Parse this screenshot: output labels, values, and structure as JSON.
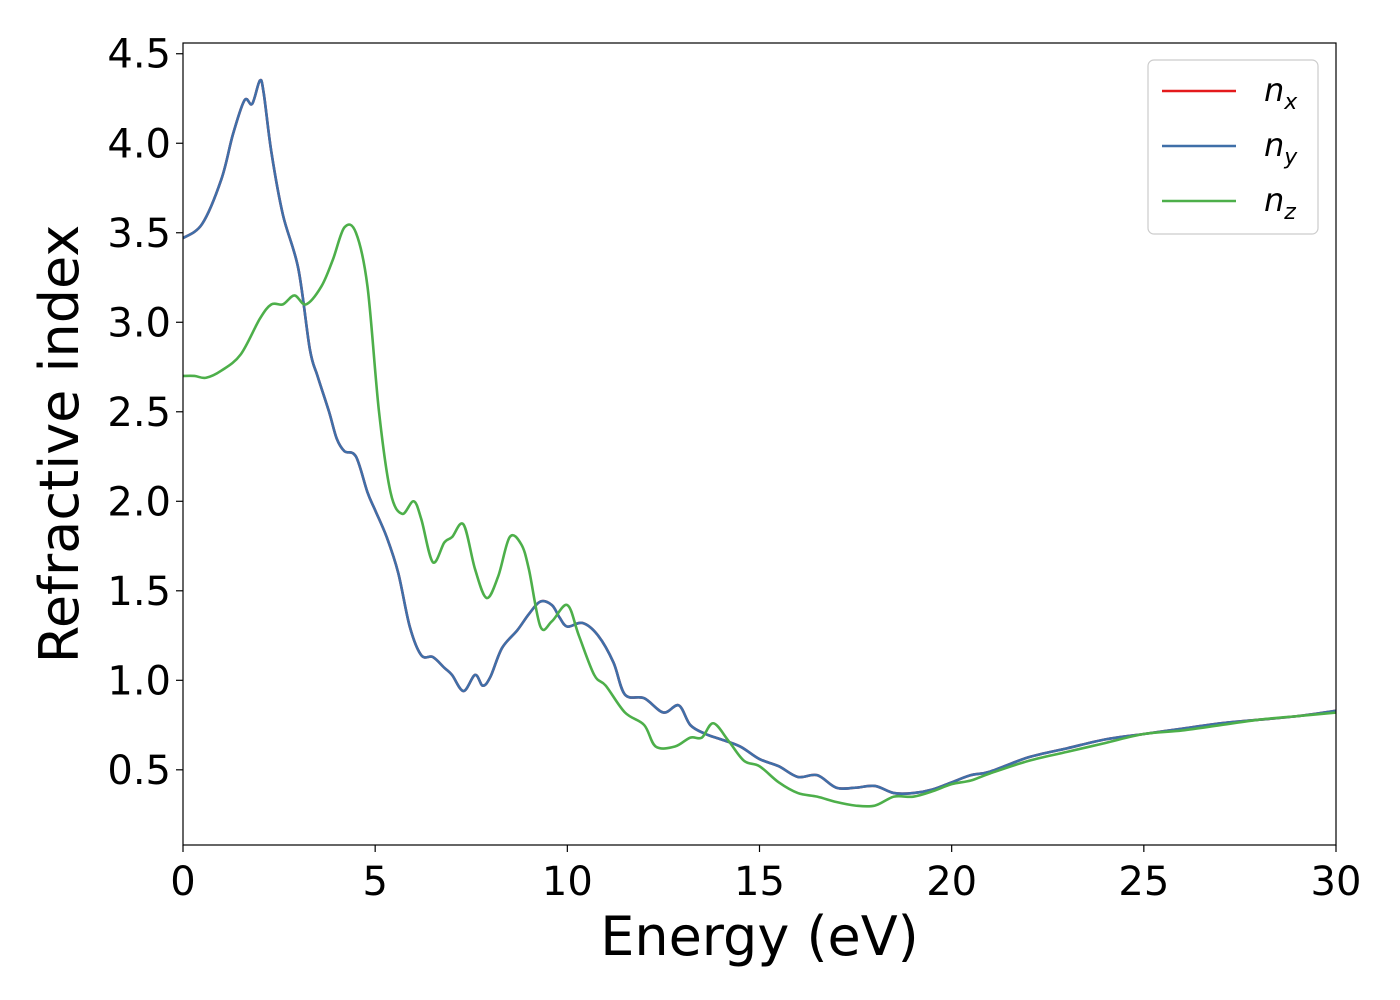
{
  "chart_data": {
    "type": "line",
    "xlabel": "Energy (eV)",
    "ylabel": "Refractive index",
    "xlim": [
      0,
      30
    ],
    "ylim": [
      0.08,
      4.56
    ],
    "xticks": [
      0,
      5,
      10,
      15,
      20,
      25,
      30
    ],
    "xtick_labels": [
      "0",
      "5",
      "10",
      "15",
      "20",
      "25",
      "30"
    ],
    "yticks": [
      0.5,
      1.0,
      1.5,
      2.0,
      2.5,
      3.0,
      3.5,
      4.0,
      4.5
    ],
    "ytick_labels": [
      "0.5",
      "1.0",
      "1.5",
      "2.0",
      "2.5",
      "3.0",
      "3.5",
      "4.0",
      "4.5"
    ],
    "grid": false,
    "legend_position": "top-right",
    "series": [
      {
        "name": "n_x",
        "base": "n",
        "sub": "x",
        "color": "#e41a1c",
        "x": [
          0,
          0.5,
          1.0,
          1.3,
          1.6,
          1.8,
          2.0,
          2.1,
          2.3,
          2.6,
          3.0,
          3.3,
          3.5,
          3.8,
          4.0,
          4.2,
          4.5,
          4.8,
          5.0,
          5.3,
          5.6,
          5.9,
          6.2,
          6.5,
          6.8,
          7.0,
          7.3,
          7.6,
          7.8,
          8.0,
          8.3,
          8.7,
          9.0,
          9.3,
          9.6,
          9.8,
          10.0,
          10.4,
          10.8,
          11.2,
          11.5,
          12.0,
          12.5,
          12.9,
          13.2,
          13.6,
          14.0,
          14.5,
          15.0,
          15.5,
          16.0,
          16.5,
          17.0,
          17.5,
          18.0,
          18.5,
          19.0,
          19.5,
          20.0,
          20.5,
          21.0,
          22.0,
          23.0,
          24.0,
          25.0,
          26.0,
          27.0,
          28.0,
          29.0,
          30.0
        ],
        "y": [
          3.47,
          3.55,
          3.8,
          4.05,
          4.24,
          4.22,
          4.35,
          4.28,
          3.95,
          3.6,
          3.3,
          2.85,
          2.7,
          2.5,
          2.35,
          2.28,
          2.25,
          2.05,
          1.95,
          1.8,
          1.6,
          1.3,
          1.14,
          1.13,
          1.07,
          1.03,
          0.94,
          1.03,
          0.97,
          1.02,
          1.18,
          1.28,
          1.37,
          1.44,
          1.42,
          1.35,
          1.3,
          1.32,
          1.25,
          1.1,
          0.92,
          0.9,
          0.82,
          0.86,
          0.75,
          0.7,
          0.67,
          0.63,
          0.56,
          0.52,
          0.46,
          0.47,
          0.4,
          0.4,
          0.41,
          0.37,
          0.37,
          0.39,
          0.43,
          0.47,
          0.49,
          0.57,
          0.62,
          0.67,
          0.7,
          0.73,
          0.76,
          0.78,
          0.8,
          0.83
        ]
      },
      {
        "name": "n_y",
        "base": "n",
        "sub": "y",
        "color": "#3f6fa8",
        "x": [
          0,
          0.5,
          1.0,
          1.3,
          1.6,
          1.8,
          2.0,
          2.1,
          2.3,
          2.6,
          3.0,
          3.3,
          3.5,
          3.8,
          4.0,
          4.2,
          4.5,
          4.8,
          5.0,
          5.3,
          5.6,
          5.9,
          6.2,
          6.5,
          6.8,
          7.0,
          7.3,
          7.6,
          7.8,
          8.0,
          8.3,
          8.7,
          9.0,
          9.3,
          9.6,
          9.8,
          10.0,
          10.4,
          10.8,
          11.2,
          11.5,
          12.0,
          12.5,
          12.9,
          13.2,
          13.6,
          14.0,
          14.5,
          15.0,
          15.5,
          16.0,
          16.5,
          17.0,
          17.5,
          18.0,
          18.5,
          19.0,
          19.5,
          20.0,
          20.5,
          21.0,
          22.0,
          23.0,
          24.0,
          25.0,
          26.0,
          27.0,
          28.0,
          29.0,
          30.0
        ],
        "y": [
          3.47,
          3.55,
          3.8,
          4.05,
          4.24,
          4.22,
          4.35,
          4.28,
          3.95,
          3.6,
          3.3,
          2.85,
          2.7,
          2.5,
          2.35,
          2.28,
          2.25,
          2.05,
          1.95,
          1.8,
          1.6,
          1.3,
          1.14,
          1.13,
          1.07,
          1.03,
          0.94,
          1.03,
          0.97,
          1.02,
          1.18,
          1.28,
          1.37,
          1.44,
          1.42,
          1.35,
          1.3,
          1.32,
          1.25,
          1.1,
          0.92,
          0.9,
          0.82,
          0.86,
          0.75,
          0.7,
          0.67,
          0.63,
          0.56,
          0.52,
          0.46,
          0.47,
          0.4,
          0.4,
          0.41,
          0.37,
          0.37,
          0.39,
          0.43,
          0.47,
          0.49,
          0.57,
          0.62,
          0.67,
          0.7,
          0.73,
          0.76,
          0.78,
          0.8,
          0.83
        ]
      },
      {
        "name": "n_z",
        "base": "n",
        "sub": "z",
        "color": "#4daf4a",
        "x": [
          0,
          0.3,
          0.6,
          1.0,
          1.5,
          2.0,
          2.3,
          2.6,
          2.9,
          3.2,
          3.6,
          3.9,
          4.2,
          4.5,
          4.8,
          5.1,
          5.4,
          5.7,
          6.0,
          6.2,
          6.5,
          6.8,
          7.0,
          7.3,
          7.6,
          7.9,
          8.2,
          8.5,
          8.8,
          9.0,
          9.3,
          9.6,
          10.0,
          10.3,
          10.7,
          11.0,
          11.5,
          12.0,
          12.3,
          12.8,
          13.2,
          13.5,
          13.8,
          14.2,
          14.6,
          15.0,
          15.5,
          16.0,
          16.5,
          17.0,
          17.5,
          18.0,
          18.5,
          19.0,
          19.5,
          20.0,
          20.5,
          21.0,
          22.0,
          23.0,
          24.0,
          25.0,
          26.0,
          27.0,
          28.0,
          29.0,
          30.0
        ],
        "y": [
          2.7,
          2.7,
          2.69,
          2.73,
          2.82,
          3.02,
          3.1,
          3.1,
          3.15,
          3.1,
          3.2,
          3.35,
          3.53,
          3.5,
          3.2,
          2.5,
          2.05,
          1.93,
          2.0,
          1.9,
          1.66,
          1.77,
          1.8,
          1.87,
          1.62,
          1.46,
          1.58,
          1.8,
          1.76,
          1.62,
          1.3,
          1.33,
          1.42,
          1.25,
          1.03,
          0.97,
          0.82,
          0.75,
          0.63,
          0.63,
          0.68,
          0.68,
          0.76,
          0.66,
          0.55,
          0.52,
          0.43,
          0.37,
          0.35,
          0.32,
          0.3,
          0.3,
          0.35,
          0.35,
          0.38,
          0.42,
          0.44,
          0.48,
          0.55,
          0.6,
          0.65,
          0.7,
          0.72,
          0.75,
          0.78,
          0.8,
          0.82
        ]
      }
    ]
  }
}
